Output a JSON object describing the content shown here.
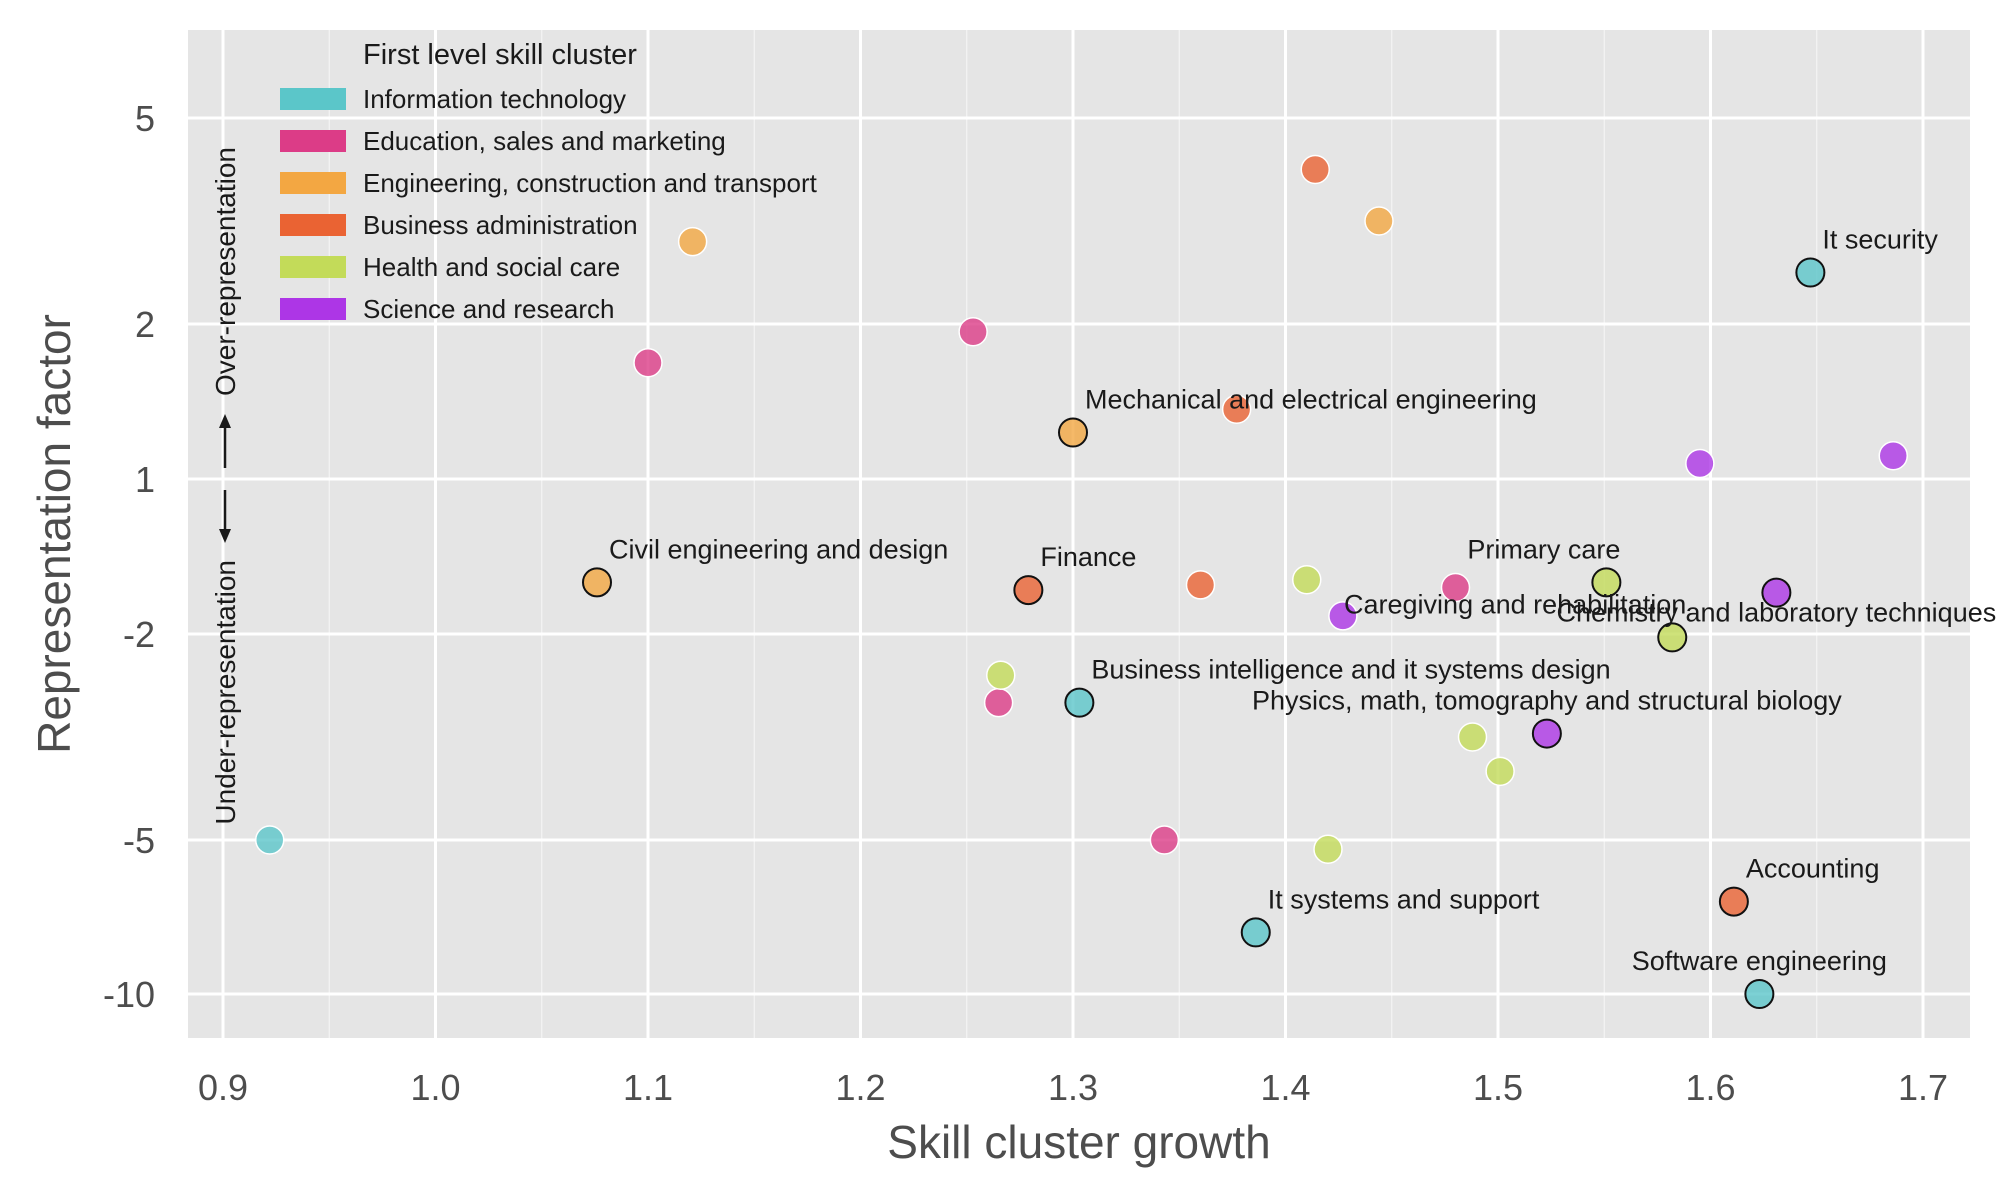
{
  "chart_data": {
    "type": "scatter",
    "xlabel": "Skill cluster growth",
    "ylabel": "Representation factor",
    "over_label": "Over-representation",
    "under_label": "Under-representation",
    "x_ticks": [
      0.9,
      1.0,
      1.1,
      1.2,
      1.3,
      1.4,
      1.5,
      1.6,
      1.7
    ],
    "x_tick_labels": [
      "0.9",
      "1.0",
      "1.1",
      "1.2",
      "1.3",
      "1.4",
      "1.5",
      "1.6",
      "1.7"
    ],
    "y_ticks": [
      5,
      2,
      1,
      -2,
      -5,
      -10
    ],
    "y_tick_labels": [
      "5",
      "2",
      "1",
      "-2",
      "-5",
      "-10"
    ],
    "grid": true,
    "legend": {
      "title": "First level skill cluster",
      "placement": "top-left",
      "entries": [
        {
          "name": "Information technology",
          "color": "#5bc6c9"
        },
        {
          "name": "Education, sales and marketing",
          "color": "#dc3c87"
        },
        {
          "name": "Engineering, construction and transport",
          "color": "#f3a742"
        },
        {
          "name": "Business administration",
          "color": "#ea6333"
        },
        {
          "name": "Health and social care",
          "color": "#c3db59"
        },
        {
          "name": "Science and research",
          "color": "#ad36e6"
        }
      ]
    },
    "points": [
      {
        "x": 1.647,
        "y": 2.75,
        "cluster": 0,
        "label": "It security",
        "label_pos": "above-right"
      },
      {
        "x": 1.303,
        "y": -3.0,
        "cluster": 0,
        "label": "Business intelligence and it systems design",
        "label_pos": "above-right"
      },
      {
        "x": 1.386,
        "y": -8.0,
        "cluster": 0,
        "label": "It systems and support",
        "label_pos": "above-right"
      },
      {
        "x": 1.623,
        "y": -10.0,
        "cluster": 0,
        "label": "Software engineering",
        "label_pos": "above-center"
      },
      {
        "x": 0.922,
        "y": -5.0,
        "cluster": 0,
        "label": ""
      },
      {
        "x": 1.1,
        "y": 1.75,
        "cluster": 1,
        "label": ""
      },
      {
        "x": 1.253,
        "y": 1.95,
        "cluster": 1,
        "label": ""
      },
      {
        "x": 1.265,
        "y": -3.0,
        "cluster": 1,
        "label": ""
      },
      {
        "x": 1.343,
        "y": -5.0,
        "cluster": 1,
        "label": ""
      },
      {
        "x": 1.48,
        "y": -1.1,
        "cluster": 1,
        "label": ""
      },
      {
        "x": 1.076,
        "y": -1.0,
        "cluster": 2,
        "label": "Civil engineering and design",
        "label_pos": "above-right"
      },
      {
        "x": 1.3,
        "y": 1.3,
        "cluster": 2,
        "label": "Mechanical and electrical engineering",
        "label_pos": "above-right"
      },
      {
        "x": 1.121,
        "y": 3.2,
        "cluster": 2,
        "label": ""
      },
      {
        "x": 1.444,
        "y": 3.5,
        "cluster": 2,
        "label": ""
      },
      {
        "x": 1.279,
        "y": -1.15,
        "cluster": 3,
        "label": "Finance",
        "label_pos": "above-right"
      },
      {
        "x": 1.611,
        "y": -7.0,
        "cluster": 3,
        "label": "Accounting",
        "label_pos": "above-right"
      },
      {
        "x": 1.414,
        "y": 4.25,
        "cluster": 3,
        "label": ""
      },
      {
        "x": 1.377,
        "y": 1.45,
        "cluster": 3,
        "label": ""
      },
      {
        "x": 1.36,
        "y": -1.05,
        "cluster": 3,
        "label": ""
      },
      {
        "x": 1.551,
        "y": -1.0,
        "cluster": 4,
        "label": "Primary care",
        "label_pos": "above-left"
      },
      {
        "x": 1.582,
        "y": -2.05,
        "cluster": 4,
        "label": "Caregiving and rehabilitation",
        "label_pos": "above-left"
      },
      {
        "x": 1.266,
        "y": -2.6,
        "cluster": 4,
        "label": ""
      },
      {
        "x": 1.41,
        "y": -0.95,
        "cluster": 4,
        "label": ""
      },
      {
        "x": 1.488,
        "y": -3.5,
        "cluster": 4,
        "label": ""
      },
      {
        "x": 1.501,
        "y": -4.0,
        "cluster": 4,
        "label": ""
      },
      {
        "x": 1.42,
        "y": -5.3,
        "cluster": 4,
        "label": ""
      },
      {
        "x": 1.631,
        "y": -1.2,
        "cluster": 5,
        "label": "Chemistry and laboratory techniques",
        "label_pos": "below-center"
      },
      {
        "x": 1.523,
        "y": -3.45,
        "cluster": 5,
        "label": "Physics, math, tomography and structural biology",
        "label_pos": "above-center"
      },
      {
        "x": 1.595,
        "y": 1.1,
        "cluster": 5,
        "label": ""
      },
      {
        "x": 1.686,
        "y": 1.15,
        "cluster": 5,
        "label": ""
      },
      {
        "x": 1.427,
        "y": -1.65,
        "cluster": 5,
        "label": ""
      }
    ]
  }
}
